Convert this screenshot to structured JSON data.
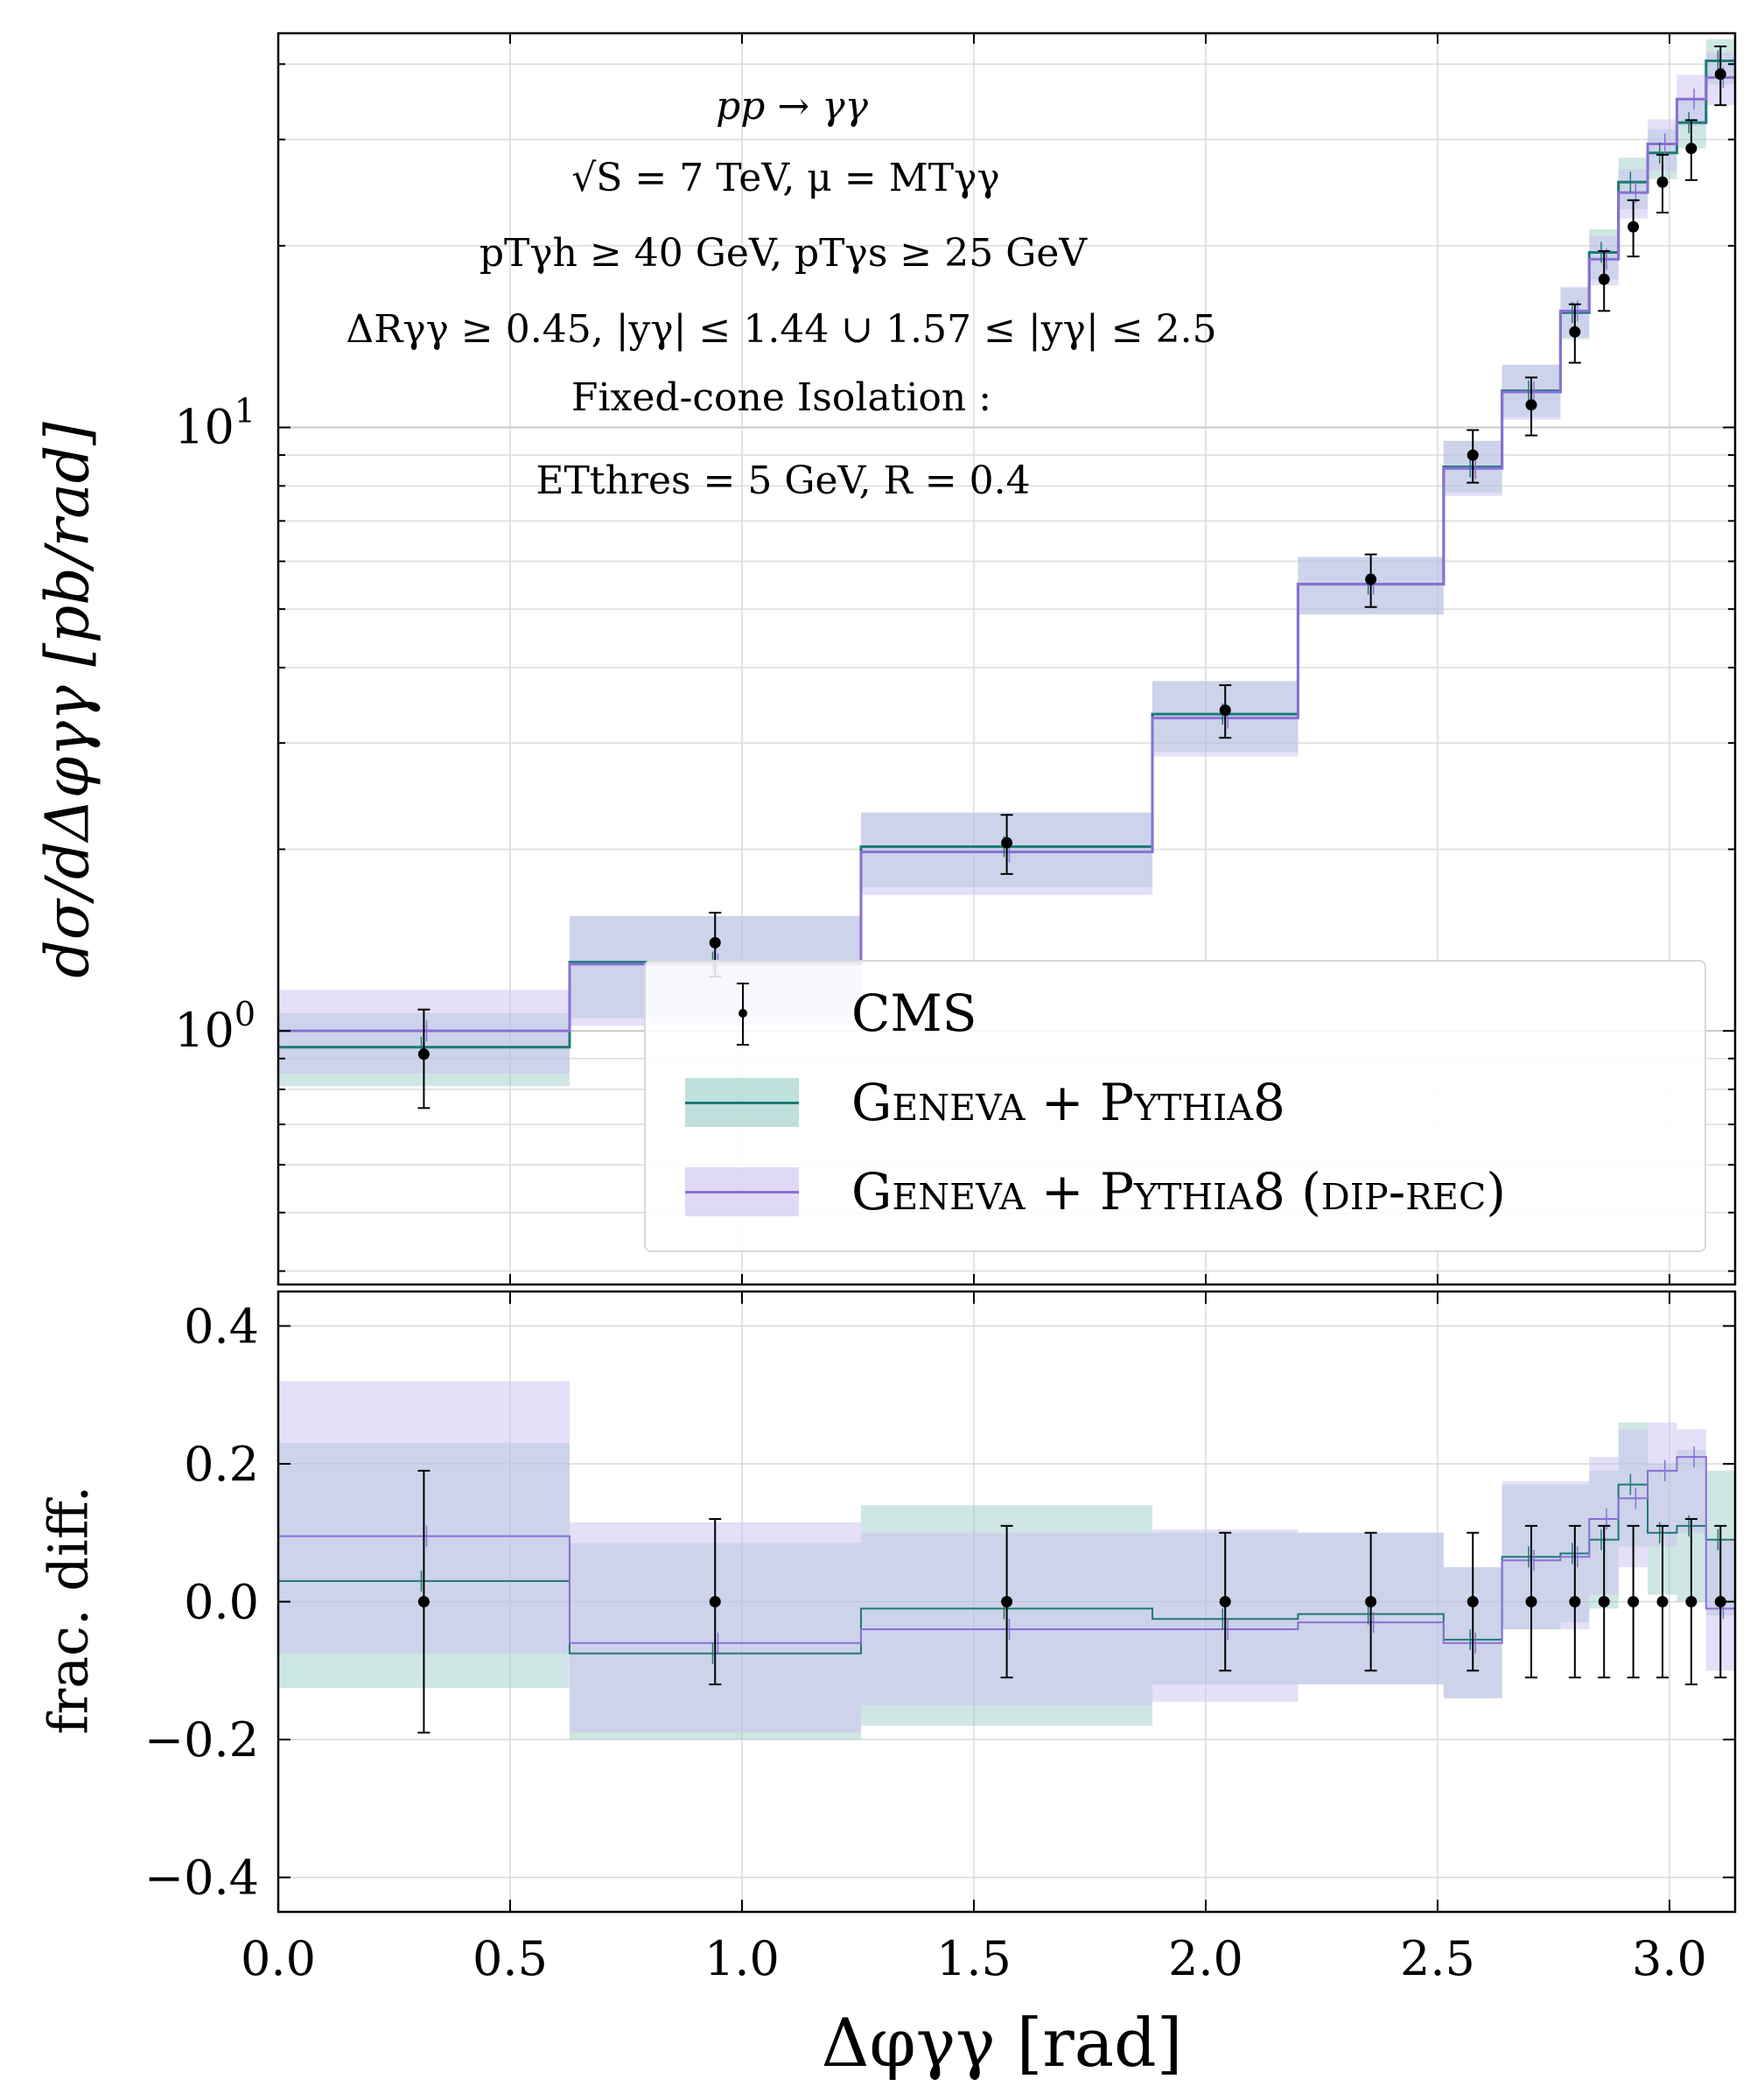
{
  "chart_data": [
    {
      "type": "line",
      "panel": "main",
      "title": "",
      "xlabel": "Δφ_γγ [rad]",
      "ylabel": "dσ/dΔφ_γγ [pb/rad]",
      "yscale": "log",
      "xlim": [
        0.0,
        3.1416
      ],
      "ylim": [
        0.38,
        45
      ],
      "ytick_labels": [
        "10^0",
        "10^1"
      ],
      "grid": true,
      "bin_edges": [
        0.0,
        0.6283,
        1.2566,
        1.885,
        2.199,
        2.513,
        2.639,
        2.765,
        2.827,
        2.89,
        2.953,
        3.016,
        3.079,
        3.1416
      ],
      "series": [
        {
          "name": "Geneva + Pythia8",
          "color": "#1b7a76",
          "band_color": "#8ac6c0",
          "values": [
            0.94,
            1.3,
            2.02,
            3.35,
            5.5,
            8.6,
            11.5,
            15.5,
            19.5,
            25.5,
            28.5,
            32.0,
            40.5
          ],
          "band_low": [
            0.81,
            1.05,
            1.73,
            2.9,
            4.9,
            7.8,
            10.4,
            14.0,
            17.6,
            23.0,
            25.8,
            29.0,
            37.0
          ],
          "band_high": [
            1.07,
            1.55,
            2.3,
            3.8,
            6.1,
            9.5,
            12.7,
            17.0,
            21.3,
            28.0,
            31.2,
            35.0,
            44.0
          ]
        },
        {
          "name": "Geneva + Pythia8 (dip-rec)",
          "color": "#8a6fd6",
          "band_color": "#cbbff0",
          "values": [
            1.0,
            1.29,
            1.98,
            3.3,
            5.5,
            8.55,
            11.45,
            15.6,
            19.0,
            24.5,
            29.5,
            35.0,
            38.0
          ],
          "band_low": [
            0.85,
            1.02,
            1.68,
            2.85,
            4.9,
            7.7,
            10.3,
            14.1,
            17.2,
            22.2,
            26.6,
            31.6,
            34.2
          ],
          "band_high": [
            1.17,
            1.55,
            2.3,
            3.8,
            6.1,
            9.5,
            12.7,
            17.1,
            20.8,
            26.8,
            32.4,
            38.4,
            41.8
          ]
        },
        {
          "name": "CMS",
          "type": "scatter",
          "color": "#000000",
          "x": [
            0.314,
            0.942,
            1.571,
            2.042,
            2.356,
            2.576,
            2.702,
            2.796,
            2.859,
            2.922,
            2.985,
            3.047,
            3.11
          ],
          "y": [
            0.915,
            1.4,
            2.05,
            3.4,
            5.6,
            9.0,
            10.9,
            14.4,
            17.6,
            21.5,
            25.5,
            29.0,
            38.5
          ],
          "yerr_low": [
            0.17,
            0.17,
            0.23,
            0.34,
            0.56,
            0.9,
            1.2,
            1.6,
            2.0,
            2.3,
            2.8,
            3.3,
            4.3
          ],
          "yerr_high": [
            0.17,
            0.17,
            0.23,
            0.34,
            0.56,
            0.9,
            1.2,
            1.6,
            2.0,
            2.3,
            2.8,
            3.3,
            4.3
          ]
        }
      ],
      "legend_position": "lower-right",
      "annotations": [
        "pp → γγ",
        "√S = 7 TeV, μ = M^T_γγ",
        "p_T^{γh} ≥ 40 GeV,   p_T^{γs} ≥ 25 GeV",
        "ΔR_γγ ≥ 0.45,  |y_γ| ≤ 1.44 ∪ 1.57 ≤ |y_γ| ≤ 2.5",
        "Fixed-cone Isolation :",
        "E_T^thres = 5 GeV,   R = 0.4"
      ]
    },
    {
      "type": "line",
      "panel": "ratio",
      "xlabel": "Δφ_γγ [rad]",
      "ylabel": "frac. diff.",
      "xlim": [
        0.0,
        3.1416
      ],
      "ylim": [
        -0.45,
        0.45
      ],
      "x_ticks": [
        0.0,
        0.5,
        1.0,
        1.5,
        2.0,
        2.5,
        3.0
      ],
      "y_ticks": [
        -0.4,
        -0.2,
        0.0,
        0.2,
        0.4
      ],
      "grid": true,
      "bin_edges": [
        0.0,
        0.6283,
        1.2566,
        1.885,
        2.199,
        2.513,
        2.639,
        2.765,
        2.827,
        2.89,
        2.953,
        3.016,
        3.079,
        3.1416
      ],
      "series": [
        {
          "name": "Geneva + Pythia8",
          "color": "#1b7a76",
          "band_color": "#8ac6c0",
          "values": [
            0.03,
            -0.075,
            -0.01,
            -0.025,
            -0.018,
            -0.055,
            0.065,
            0.07,
            0.09,
            0.17,
            0.1,
            0.11,
            0.09
          ],
          "band_low": [
            -0.125,
            -0.2,
            -0.18,
            -0.12,
            -0.12,
            -0.14,
            -0.04,
            -0.03,
            -0.01,
            0.08,
            0.01,
            0.0,
            -0.02
          ],
          "band_high": [
            0.23,
            0.085,
            0.14,
            0.1,
            0.1,
            0.05,
            0.17,
            0.17,
            0.19,
            0.26,
            0.2,
            0.22,
            0.19
          ]
        },
        {
          "name": "Geneva + Pythia8 (dip-rec)",
          "color": "#8a6fd6",
          "band_color": "#cbbff0",
          "values": [
            0.095,
            -0.06,
            -0.04,
            -0.04,
            -0.03,
            -0.06,
            0.06,
            0.065,
            0.12,
            0.15,
            0.19,
            0.21,
            -0.01
          ],
          "band_low": [
            -0.075,
            -0.19,
            -0.15,
            -0.145,
            -0.12,
            -0.14,
            -0.04,
            -0.04,
            0.01,
            0.05,
            0.08,
            0.1,
            -0.1
          ],
          "band_high": [
            0.32,
            0.115,
            0.1,
            0.105,
            0.1,
            0.05,
            0.175,
            0.175,
            0.21,
            0.25,
            0.26,
            0.25,
            0.09
          ]
        },
        {
          "name": "CMS",
          "type": "scatter",
          "color": "#000000",
          "x": [
            0.314,
            0.942,
            1.571,
            2.042,
            2.356,
            2.576,
            2.702,
            2.796,
            2.859,
            2.922,
            2.985,
            3.047,
            3.11
          ],
          "y": [
            0,
            0,
            0,
            0,
            0,
            0,
            0,
            0,
            0,
            0,
            0,
            0,
            0
          ],
          "yerr": [
            0.19,
            0.12,
            0.11,
            0.1,
            0.1,
            0.1,
            0.11,
            0.11,
            0.11,
            0.11,
            0.11,
            0.12,
            0.11
          ]
        }
      ]
    }
  ],
  "labels": {
    "ylabel_main": "dσ/dΔφγγ [pb/rad]",
    "ylabel_ratio": "frac.  diff.",
    "xlabel": "Δφγγ [rad]"
  },
  "annotation_lines": {
    "l1": "pp → γγ",
    "l2": "√S = 7 TeV, μ = MTγγ",
    "l3": "pTγh ≥ 40 GeV,   pTγs ≥ 25 GeV",
    "l4": "ΔRγγ ≥ 0.45,  |yγ| ≤ 1.44 ∪ 1.57 ≤ |yγ| ≤ 2.5",
    "l5": "Fixed-cone Isolation :",
    "l6": "ETthres = 5 GeV,   R = 0.4"
  },
  "legend": {
    "cms": "CMS",
    "geneva": "Geneva + Pythia8",
    "dip": "Geneva + Pythia8 (dip-rec)"
  }
}
